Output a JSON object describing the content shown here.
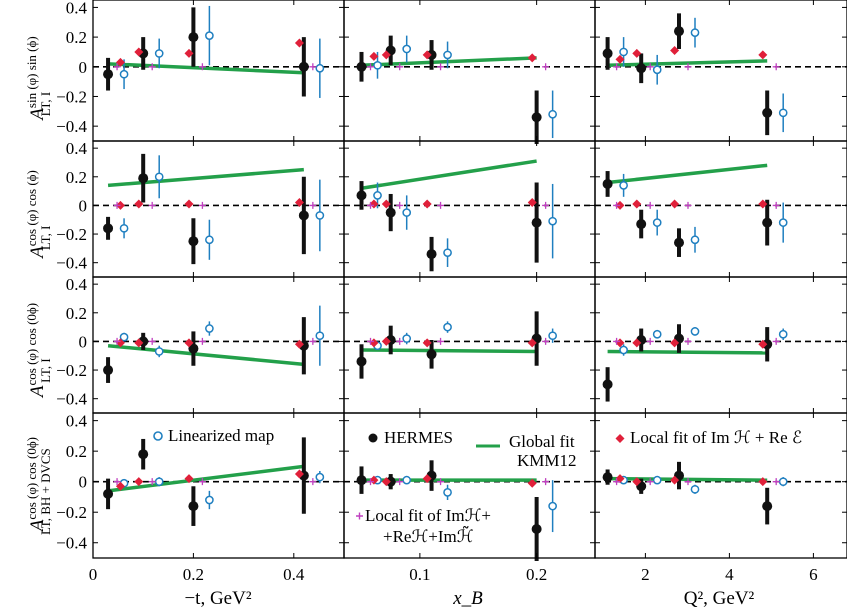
{
  "figure": {
    "rows": [
      {
        "ylabel_main": "A",
        "ylabel_sup": "sin (φ) sin (ϕ)",
        "ylabel_sub": "LT, I"
      },
      {
        "ylabel_main": "A",
        "ylabel_sup": "cos (φ) cos (ϕ)",
        "ylabel_sub": "LT, I"
      },
      {
        "ylabel_main": "A",
        "ylabel_sup": "cos (φ) cos (0ϕ)",
        "ylabel_sub": "LT, I"
      },
      {
        "ylabel_main": "A",
        "ylabel_sup": "cos (φ) cos (0ϕ)",
        "ylabel_sub": "LT, BH + DVCS"
      }
    ],
    "columns": [
      {
        "xlabel": "−t, GeV²",
        "xticks": [
          "0",
          "0.2",
          "0.4"
        ]
      },
      {
        "xlabel": "x_B",
        "xticks": [
          "0.1",
          "0.2"
        ]
      },
      {
        "xlabel": "Q², GeV²",
        "xticks": [
          "2",
          "4",
          "6"
        ]
      }
    ],
    "yticks": [
      "0.4",
      "0.2",
      "0",
      "−0.2",
      "−0.4"
    ],
    "legend": {
      "linearized": "Linearized map",
      "hermes": "HERMES",
      "global_fit_line1": "Global fit",
      "global_fit_line2": "KMM12",
      "local_fit_re": "Local fit of Im ℋ + Re ℰ",
      "local_fit_tilde_line1": "Local fit of Imℋ+",
      "local_fit_tilde_line2": "+Reℋ+Imℋ̃"
    },
    "colors": {
      "hermes": "#111111",
      "linearized": "#1f7fc0",
      "global_fit": "#23a04a",
      "local_re": "#e0203a",
      "local_tilde": "#c040c0"
    }
  },
  "chart_data": {
    "type": "scatter",
    "layout": "4x3 panel grid",
    "ylim": [
      -0.5,
      0.45
    ],
    "xlims": [
      [
        0,
        0.5
      ],
      [
        0.035,
        0.25
      ],
      [
        0.8,
        6.8
      ]
    ],
    "series_names": [
      "HERMES",
      "Linearized map",
      "Global fit KMM12",
      "Local fit of Im H + Re E",
      "Local fit of Im H + Re H + Im H~"
    ],
    "columns": [
      {
        "name": "-t",
        "x": [
          0.03,
          0.1,
          0.2,
          0.42
        ],
        "rows": [
          {
            "hermes": [
              -0.05,
              0.09,
              0.2,
              0.0
            ],
            "hermes_err": [
              0.11,
              0.11,
              0.2,
              0.2
            ],
            "lin": [
              -0.05,
              0.09,
              0.21,
              -0.01
            ],
            "lin_err": [
              0.1,
              0.1,
              0.2,
              0.2
            ],
            "fit": [
              [
                0.03,
                0.02
              ],
              [
                0.42,
                -0.04
              ]
            ],
            "local_re": [
              0.03,
              0.1,
              0.09,
              0.16
            ],
            "local_tilde": [
              0.0,
              0.0,
              0.0,
              0.0
            ]
          },
          {
            "hermes": [
              -0.16,
              0.19,
              -0.25,
              -0.07
            ],
            "hermes_err": [
              0.08,
              0.17,
              0.16,
              0.27
            ],
            "lin": [
              -0.16,
              0.2,
              -0.24,
              -0.07
            ],
            "lin_err": [
              0.07,
              0.15,
              0.14,
              0.25
            ],
            "fit": [
              [
                0.03,
                0.14
              ],
              [
                0.42,
                0.25
              ]
            ],
            "local_re": [
              0.0,
              0.01,
              0.01,
              0.02
            ],
            "local_tilde": [
              0.0,
              0.0,
              0.0,
              0.0
            ]
          },
          {
            "hermes": [
              -0.2,
              0.0,
              -0.05,
              -0.03
            ],
            "hermes_err": [
              0.09,
              0.06,
              0.12,
              0.2
            ],
            "lin": [
              0.03,
              -0.07,
              0.09,
              0.04
            ],
            "lin_err": [
              0.03,
              0.04,
              0.05,
              0.21
            ],
            "fit": [
              [
                0.03,
                -0.03
              ],
              [
                0.42,
                -0.16
              ]
            ],
            "local_re": [
              -0.01,
              -0.01,
              -0.01,
              -0.02
            ],
            "local_tilde": [
              0.0,
              0.0,
              0.0,
              0.0
            ]
          },
          {
            "hermes": [
              -0.08,
              0.18,
              -0.16,
              0.04
            ],
            "hermes_err": [
              0.1,
              0.1,
              0.13,
              0.25
            ],
            "lin": [
              -0.01,
              0.0,
              -0.12,
              0.03
            ],
            "lin_err": [
              0.02,
              0.03,
              0.06,
              0.04
            ],
            "fit": [
              [
                0.03,
                -0.06
              ],
              [
                0.42,
                0.1
              ]
            ],
            "local_re": [
              -0.03,
              0.0,
              0.02,
              0.05
            ],
            "local_tilde": [
              0.0,
              0.0,
              0.0,
              0.0
            ]
          }
        ]
      },
      {
        "name": "x_B",
        "x": [
          0.05,
          0.075,
          0.11,
          0.2
        ],
        "rows": [
          {
            "hermes": [
              0.0,
              0.11,
              0.08,
              -0.34
            ],
            "hermes_err": [
              0.1,
              0.1,
              0.1,
              0.18
            ],
            "lin": [
              0.01,
              0.12,
              0.08,
              -0.32
            ],
            "lin_err": [
              0.09,
              0.09,
              0.09,
              0.16
            ],
            "fit": [
              [
                0.05,
                0.01
              ],
              [
                0.2,
                0.06
              ]
            ],
            "local_re": [
              0.07,
              0.08,
              0.08,
              0.06
            ],
            "local_tilde": [
              0.0,
              0.0,
              0.0,
              0.0
            ]
          },
          {
            "hermes": [
              0.07,
              -0.05,
              -0.34,
              -0.12
            ],
            "hermes_err": [
              0.1,
              0.13,
              0.12,
              0.28
            ],
            "lin": [
              0.07,
              -0.05,
              -0.33,
              -0.11
            ],
            "lin_err": [
              0.09,
              0.12,
              0.1,
              0.26
            ],
            "fit": [
              [
                0.05,
                0.12
              ],
              [
                0.2,
                0.31
              ]
            ],
            "local_re": [
              0.01,
              0.01,
              0.01,
              0.02
            ],
            "local_tilde": [
              0.0,
              0.0,
              0.0,
              0.0
            ]
          },
          {
            "hermes": [
              -0.14,
              0.01,
              -0.09,
              0.02
            ],
            "hermes_err": [
              0.12,
              0.1,
              0.1,
              0.19
            ],
            "lin": [
              -0.03,
              0.02,
              0.1,
              0.04
            ],
            "lin_err": [
              0.03,
              0.04,
              0.04,
              0.05
            ],
            "fit": [
              [
                0.05,
                -0.06
              ],
              [
                0.2,
                -0.07
              ]
            ],
            "local_re": [
              -0.01,
              0.0,
              -0.01,
              -0.01
            ],
            "local_tilde": [
              0.0,
              0.0,
              0.0,
              0.0
            ]
          },
          {
            "hermes": [
              0.01,
              0.0,
              0.04,
              -0.31
            ],
            "hermes_err": [
              0.09,
              0.05,
              0.1,
              0.21
            ],
            "lin": [
              0.01,
              0.01,
              -0.07,
              -0.16
            ],
            "lin_err": [
              0.02,
              0.02,
              0.05,
              0.17
            ],
            "fit": [
              [
                0.05,
                0.01
              ],
              [
                0.2,
                0.01
              ]
            ],
            "local_re": [
              0.01,
              0.0,
              0.02,
              -0.01
            ],
            "local_tilde": [
              0.0,
              0.0,
              0.0,
              0.0
            ]
          }
        ]
      },
      {
        "name": "Q^2",
        "x": [
          1.1,
          1.9,
          2.8,
          4.9
        ],
        "rows": [
          {
            "hermes": [
              0.09,
              -0.01,
              0.24,
              -0.31
            ],
            "hermes_err": [
              0.11,
              0.1,
              0.12,
              0.15
            ],
            "lin": [
              0.1,
              -0.02,
              0.23,
              -0.31
            ],
            "lin_err": [
              0.1,
              0.1,
              0.1,
              0.13
            ],
            "fit": [
              [
                1.1,
                0.01
              ],
              [
                4.9,
                0.04
              ]
            ],
            "local_re": [
              0.05,
              0.09,
              0.11,
              0.08
            ],
            "local_tilde": [
              0.0,
              0.0,
              0.0,
              0.0
            ]
          },
          {
            "hermes": [
              0.15,
              -0.13,
              -0.26,
              -0.12
            ],
            "hermes_err": [
              0.09,
              0.1,
              0.1,
              0.16
            ],
            "lin": [
              0.14,
              -0.12,
              -0.24,
              -0.12
            ],
            "lin_err": [
              0.08,
              0.09,
              0.09,
              0.14
            ],
            "fit": [
              [
                1.1,
                0.16
              ],
              [
                4.9,
                0.28
              ]
            ],
            "local_re": [
              0.0,
              0.01,
              0.01,
              0.01
            ],
            "local_tilde": [
              0.0,
              0.0,
              0.0,
              0.0
            ]
          },
          {
            "hermes": [
              -0.3,
              0.01,
              0.02,
              -0.02
            ],
            "hermes_err": [
              0.12,
              0.08,
              0.1,
              0.12
            ],
            "lin": [
              -0.06,
              0.05,
              0.07,
              0.05
            ],
            "lin_err": [
              0.04,
              0.03,
              0.03,
              0.04
            ],
            "fit": [
              [
                1.1,
                -0.07
              ],
              [
                4.9,
                -0.08
              ]
            ],
            "local_re": [
              -0.01,
              -0.01,
              -0.01,
              -0.02
            ],
            "local_tilde": [
              0.0,
              0.0,
              0.0,
              0.0
            ]
          },
          {
            "hermes": [
              0.03,
              -0.03,
              0.04,
              -0.16
            ],
            "hermes_err": [
              0.05,
              0.05,
              0.09,
              0.12
            ],
            "lin": [
              0.01,
              0.01,
              -0.05,
              0.0
            ],
            "lin_err": [
              0.01,
              0.01,
              0.03,
              0.03
            ],
            "fit": [
              [
                1.1,
                0.02
              ],
              [
                4.9,
                0.01
              ]
            ],
            "local_re": [
              0.02,
              0.0,
              0.01,
              0.0
            ],
            "local_tilde": [
              0.0,
              0.0,
              0.0,
              0.0
            ]
          }
        ]
      }
    ]
  }
}
